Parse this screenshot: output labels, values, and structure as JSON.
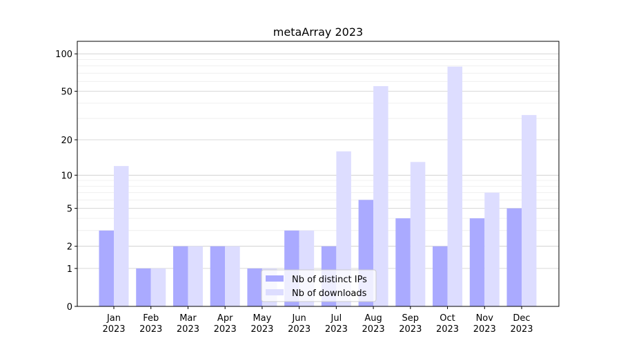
{
  "chart_data": {
    "type": "bar",
    "title": "metaArray 2023",
    "xlabel": "",
    "ylabel": "",
    "yscale": "log(1+y)",
    "ylim": [
      0,
      120
    ],
    "yticks": [
      0,
      1,
      2,
      5,
      10,
      20,
      50,
      100
    ],
    "ytick_labels": [
      "0",
      "1",
      "2",
      "5",
      "10",
      "20",
      "50",
      "100"
    ],
    "grid": true,
    "legend_position": "bottom-center",
    "categories": [
      "Jan\n2023",
      "Feb\n2023",
      "Mar\n2023",
      "Apr\n2023",
      "May\n2023",
      "Jun\n2023",
      "Jul\n2023",
      "Aug\n2023",
      "Sep\n2023",
      "Oct\n2023",
      "Nov\n2023",
      "Dec\n2023"
    ],
    "category_labels": [
      [
        "Jan",
        "2023"
      ],
      [
        "Feb",
        "2023"
      ],
      [
        "Mar",
        "2023"
      ],
      [
        "Apr",
        "2023"
      ],
      [
        "May",
        "2023"
      ],
      [
        "Jun",
        "2023"
      ],
      [
        "Jul",
        "2023"
      ],
      [
        "Aug",
        "2023"
      ],
      [
        "Sep",
        "2023"
      ],
      [
        "Oct",
        "2023"
      ],
      [
        "Nov",
        "2023"
      ],
      [
        "Dec",
        "2023"
      ]
    ],
    "series": [
      {
        "name": "Nb of distinct IPs",
        "color": "#aaaaff",
        "values": [
          3,
          1,
          2,
          2,
          1,
          3,
          2,
          6,
          4,
          2,
          4,
          5
        ]
      },
      {
        "name": "Nb of downloads",
        "color": "#ddddff",
        "values": [
          12,
          1,
          2,
          2,
          1,
          3,
          16,
          55,
          13,
          79,
          7,
          32
        ]
      }
    ]
  }
}
